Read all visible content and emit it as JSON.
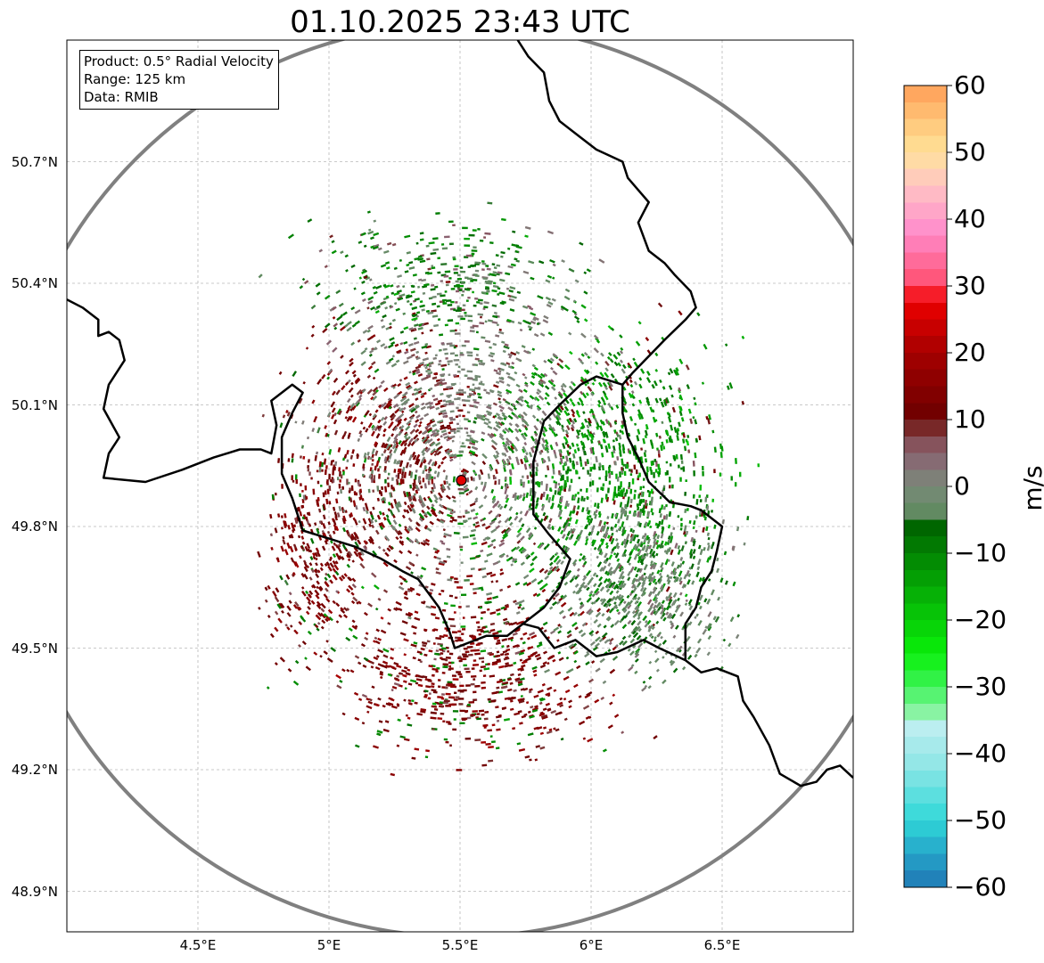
{
  "title": "01.10.2025 23:43 UTC",
  "info_box": {
    "product": "Product: 0.5° Radial Velocity",
    "range": "Range: 125 km",
    "data": "Data: RMIB"
  },
  "map": {
    "lon_range": [
      4.0,
      7.0
    ],
    "lat_range": [
      48.8,
      51.0
    ],
    "radar_site": {
      "lon": 5.505,
      "lat": 49.914
    },
    "range_km": 125,
    "lat_ticks": [
      {
        "value": 50.7,
        "label": "50.7°N"
      },
      {
        "value": 50.4,
        "label": "50.4°N"
      },
      {
        "value": 50.1,
        "label": "50.1°N"
      },
      {
        "value": 49.8,
        "label": "49.8°N"
      },
      {
        "value": 49.5,
        "label": "49.5°N"
      },
      {
        "value": 49.2,
        "label": "49.2°N"
      },
      {
        "value": 48.9,
        "label": "48.9°N"
      }
    ],
    "lon_ticks": [
      {
        "value": 4.5,
        "label": "4.5°E"
      },
      {
        "value": 5.0,
        "label": "5°E"
      },
      {
        "value": 5.5,
        "label": "5.5°E"
      },
      {
        "value": 6.0,
        "label": "6°E"
      },
      {
        "value": 6.5,
        "label": "6.5°E"
      }
    ],
    "borders": [
      [
        [
          4.0,
          50.36
        ],
        [
          4.06,
          50.34
        ],
        [
          4.12,
          50.31
        ],
        [
          4.12,
          50.27
        ],
        [
          4.16,
          50.28
        ],
        [
          4.2,
          50.26
        ],
        [
          4.22,
          50.21
        ],
        [
          4.16,
          50.15
        ],
        [
          4.14,
          50.09
        ],
        [
          4.2,
          50.02
        ],
        [
          4.16,
          49.98
        ],
        [
          4.14,
          49.92
        ],
        [
          4.3,
          49.91
        ],
        [
          4.44,
          49.94
        ],
        [
          4.56,
          49.97
        ],
        [
          4.66,
          49.99
        ],
        [
          4.74,
          49.99
        ],
        [
          4.78,
          49.98
        ],
        [
          4.8,
          50.05
        ],
        [
          4.78,
          50.11
        ],
        [
          4.86,
          50.15
        ],
        [
          4.9,
          50.13
        ],
        [
          4.86,
          50.08
        ],
        [
          4.82,
          50.02
        ],
        [
          4.82,
          49.93
        ],
        [
          4.86,
          49.87
        ],
        [
          4.9,
          49.79
        ],
        [
          5.0,
          49.77
        ],
        [
          5.1,
          49.75
        ],
        [
          5.2,
          49.72
        ],
        [
          5.28,
          49.69
        ],
        [
          5.34,
          49.67
        ],
        [
          5.42,
          49.6
        ],
        [
          5.46,
          49.54
        ],
        [
          5.48,
          49.5
        ],
        [
          5.6,
          49.53
        ],
        [
          5.68,
          49.53
        ],
        [
          5.74,
          49.56
        ],
        [
          5.8,
          49.55
        ],
        [
          5.86,
          49.5
        ],
        [
          5.94,
          49.52
        ],
        [
          6.02,
          49.48
        ],
        [
          6.1,
          49.49
        ],
        [
          6.2,
          49.52
        ],
        [
          6.26,
          49.5
        ],
        [
          6.36,
          49.47
        ]
      ],
      [
        [
          5.74,
          49.56
        ],
        [
          5.82,
          49.6
        ],
        [
          5.88,
          49.65
        ],
        [
          5.92,
          49.72
        ],
        [
          5.84,
          49.78
        ],
        [
          5.78,
          49.83
        ],
        [
          5.78,
          49.89
        ],
        [
          5.78,
          49.96
        ],
        [
          5.82,
          50.06
        ],
        [
          5.88,
          50.1
        ],
        [
          5.96,
          50.15
        ],
        [
          6.02,
          50.17
        ],
        [
          6.12,
          50.15
        ],
        [
          6.12,
          50.08
        ],
        [
          6.14,
          50.02
        ],
        [
          6.18,
          49.97
        ],
        [
          6.22,
          49.91
        ],
        [
          6.3,
          49.86
        ],
        [
          6.38,
          49.85
        ],
        [
          6.42,
          49.84
        ],
        [
          6.5,
          49.8
        ],
        [
          6.48,
          49.74
        ],
        [
          6.46,
          49.69
        ],
        [
          6.42,
          49.65
        ],
        [
          6.4,
          49.6
        ],
        [
          6.36,
          49.56
        ],
        [
          6.36,
          49.47
        ]
      ],
      [
        [
          6.12,
          50.15
        ],
        [
          6.16,
          50.18
        ],
        [
          6.22,
          50.22
        ],
        [
          6.28,
          50.26
        ],
        [
          6.36,
          50.31
        ],
        [
          6.4,
          50.34
        ],
        [
          6.38,
          50.38
        ],
        [
          6.32,
          50.42
        ],
        [
          6.28,
          50.45
        ],
        [
          6.22,
          50.48
        ],
        [
          6.18,
          50.55
        ],
        [
          6.22,
          50.6
        ],
        [
          6.18,
          50.63
        ],
        [
          6.14,
          50.66
        ],
        [
          6.12,
          50.7
        ],
        [
          6.02,
          50.73
        ],
        [
          5.96,
          50.76
        ],
        [
          5.88,
          50.8
        ],
        [
          5.84,
          50.85
        ],
        [
          5.82,
          50.92
        ],
        [
          5.76,
          50.96
        ],
        [
          5.72,
          51.0
        ]
      ],
      [
        [
          6.36,
          49.47
        ],
        [
          6.42,
          49.44
        ],
        [
          6.48,
          49.45
        ],
        [
          6.56,
          49.43
        ],
        [
          6.58,
          49.37
        ],
        [
          6.62,
          49.33
        ],
        [
          6.68,
          49.26
        ],
        [
          6.72,
          49.19
        ],
        [
          6.8,
          49.16
        ],
        [
          6.86,
          49.17
        ],
        [
          6.9,
          49.2
        ],
        [
          6.95,
          49.21
        ],
        [
          7.0,
          49.18
        ]
      ]
    ]
  },
  "colorbar": {
    "label": "m/s",
    "vmin": -60,
    "vmax": 60,
    "ticks": [
      {
        "value": 60,
        "label": "60"
      },
      {
        "value": 50,
        "label": "50"
      },
      {
        "value": 40,
        "label": "40"
      },
      {
        "value": 30,
        "label": "30"
      },
      {
        "value": 20,
        "label": "20"
      },
      {
        "value": 10,
        "label": "10"
      },
      {
        "value": 0,
        "label": "0"
      },
      {
        "value": -10,
        "label": "−10"
      },
      {
        "value": -20,
        "label": "−20"
      },
      {
        "value": -30,
        "label": "−30"
      },
      {
        "value": -40,
        "label": "−40"
      },
      {
        "value": -50,
        "label": "−50"
      },
      {
        "value": -60,
        "label": "−60"
      }
    ],
    "color_stops": [
      {
        "value": -60,
        "color": "#1f77b4"
      },
      {
        "value": -55,
        "color": "#26a4c9"
      },
      {
        "value": -50,
        "color": "#2fd8d8"
      },
      {
        "value": -42,
        "color": "#8ee6e6"
      },
      {
        "value": -36,
        "color": "#bdeef0"
      },
      {
        "value": -34,
        "color": "#8ef3a8"
      },
      {
        "value": -30,
        "color": "#3ef35a"
      },
      {
        "value": -25,
        "color": "#0af00a"
      },
      {
        "value": -15,
        "color": "#05a805"
      },
      {
        "value": -6,
        "color": "#006400"
      },
      {
        "value": -5,
        "color": "#5a8a5a"
      },
      {
        "value": 0,
        "color": "#7a8a7a"
      },
      {
        "value": 5,
        "color": "#8a6070"
      },
      {
        "value": 8,
        "color": "#804040"
      },
      {
        "value": 10,
        "color": "#6b0000"
      },
      {
        "value": 20,
        "color": "#a50000"
      },
      {
        "value": 28,
        "color": "#f00000"
      },
      {
        "value": 30,
        "color": "#ff4d6d"
      },
      {
        "value": 38,
        "color": "#ff8ccc"
      },
      {
        "value": 45,
        "color": "#ffc4c4"
      },
      {
        "value": 50,
        "color": "#ffe29a"
      },
      {
        "value": 55,
        "color": "#ffc477"
      },
      {
        "value": 60,
        "color": "#ff9d57"
      }
    ]
  },
  "echo_regions": [
    {
      "name": "outgoing-west",
      "lon": 5.25,
      "lat": 49.95,
      "spread_lon": 0.35,
      "spread_lat": 0.3,
      "velocity": 12,
      "count": 700
    },
    {
      "name": "outgoing-south",
      "lon": 5.55,
      "lat": 49.45,
      "spread_lon": 0.45,
      "spread_lat": 0.2,
      "velocity": 13,
      "count": 700
    },
    {
      "name": "outgoing-southwest",
      "lon": 4.95,
      "lat": 49.72,
      "spread_lon": 0.18,
      "spread_lat": 0.25,
      "velocity": 12,
      "count": 300
    },
    {
      "name": "incoming-east",
      "lon": 6.05,
      "lat": 49.95,
      "spread_lon": 0.4,
      "spread_lat": 0.3,
      "velocity": -12,
      "count": 1000
    },
    {
      "name": "near-zero-center",
      "lon": 5.55,
      "lat": 50.05,
      "spread_lon": 0.45,
      "spread_lat": 0.35,
      "velocity": 1,
      "count": 900
    },
    {
      "name": "near-zero-east",
      "lon": 6.2,
      "lat": 49.65,
      "spread_lon": 0.3,
      "spread_lat": 0.2,
      "velocity": -3,
      "count": 600
    },
    {
      "name": "sparse-north",
      "lon": 5.4,
      "lat": 50.4,
      "spread_lon": 0.45,
      "spread_lat": 0.15,
      "velocity": -8,
      "count": 350
    }
  ]
}
